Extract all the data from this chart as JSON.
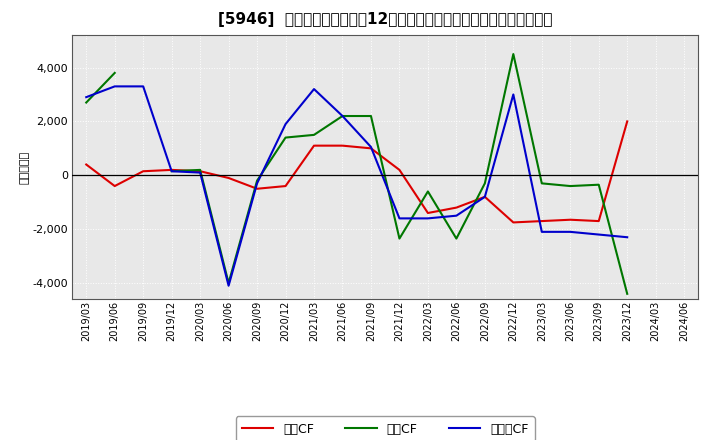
{
  "title": "[5946]  キャッシュフローの12か月移動合計の対前年同期増減額の推移",
  "ylabel": "（百万円）",
  "x_labels": [
    "2019/03",
    "2019/06",
    "2019/09",
    "2019/12",
    "2020/03",
    "2020/06",
    "2020/09",
    "2020/12",
    "2021/03",
    "2021/06",
    "2021/09",
    "2021/12",
    "2022/03",
    "2022/06",
    "2022/09",
    "2022/12",
    "2023/03",
    "2023/06",
    "2023/09",
    "2023/12",
    "2024/03",
    "2024/06"
  ],
  "operating_cf": [
    400,
    -400,
    150,
    200,
    150,
    -100,
    -500,
    -400,
    1100,
    1100,
    1000,
    200,
    -1400,
    -1200,
    -800,
    -1750,
    -1700,
    -1650,
    -1700,
    2000,
    null,
    null
  ],
  "investing_cf": [
    2700,
    3800,
    null,
    150,
    200,
    -4000,
    -200,
    1400,
    1500,
    2200,
    2200,
    -2350,
    -600,
    -2350,
    -300,
    4500,
    -300,
    -400,
    -350,
    -4400,
    null,
    null
  ],
  "free_cf": [
    2900,
    3300,
    3300,
    150,
    100,
    -4100,
    -300,
    1900,
    3200,
    2200,
    1050,
    -1600,
    -1600,
    -1500,
    -800,
    3000,
    -2100,
    -2100,
    -2200,
    -2300,
    null,
    null
  ],
  "ylim": [
    -4600,
    5200
  ],
  "yticks": [
    -4000,
    -2000,
    0,
    2000,
    4000
  ],
  "line_colors": {
    "operating": "#dd0000",
    "investing": "#007700",
    "free": "#0000cc"
  },
  "legend_labels": [
    "営業CF",
    "投資CF",
    "フリーCF"
  ],
  "bg_color": "#ffffff",
  "plot_bg_color": "#e8e8e8",
  "title_fontsize": 11,
  "axis_fontsize": 8,
  "legend_fontsize": 9
}
